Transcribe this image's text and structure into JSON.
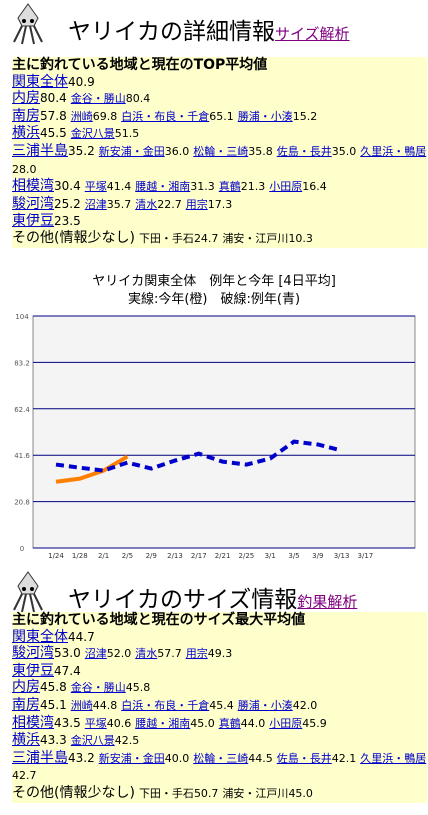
{
  "section1": {
    "title": "ヤリイカの詳細情報",
    "link": "サイズ解析",
    "heading": "主に釣れている地域と現在のTOP平均値",
    "rows": [
      {
        "region": "関東全体",
        "value": "40.9",
        "areas": []
      },
      {
        "region": "内房",
        "value": "80.4",
        "areas": [
          {
            "name": "金谷・勝山",
            "value": "80.4"
          }
        ]
      },
      {
        "region": "南房",
        "value": "57.8",
        "areas": [
          {
            "name": "洲崎",
            "value": "69.8"
          },
          {
            "name": "白浜・布良・千倉",
            "value": "65.1"
          },
          {
            "name": "勝浦・小湊",
            "value": "15.2"
          }
        ]
      },
      {
        "region": "横浜",
        "value": "45.5",
        "areas": [
          {
            "name": "金沢八景",
            "value": "51.5"
          }
        ]
      },
      {
        "region": "三浦半島",
        "value": "35.2",
        "areas": [
          {
            "name": "新安浦・金田",
            "value": "36.0"
          },
          {
            "name": "松輪・三崎",
            "value": "35.8"
          },
          {
            "name": "佐島・長井",
            "value": "35.0"
          },
          {
            "name": "久里浜・鴨居",
            "value": "28.0"
          }
        ]
      },
      {
        "region": "相模湾",
        "value": "30.4",
        "areas": [
          {
            "name": "平塚",
            "value": "41.4"
          },
          {
            "name": "腰越・湘南",
            "value": "31.3"
          },
          {
            "name": "真鶴",
            "value": "21.3"
          },
          {
            "name": "小田原",
            "value": "16.4"
          }
        ]
      },
      {
        "region": "駿河湾",
        "value": "25.2",
        "areas": [
          {
            "name": "沼津",
            "value": "35.7"
          },
          {
            "name": "清水",
            "value": "22.7"
          },
          {
            "name": "用宗",
            "value": "17.3"
          }
        ]
      },
      {
        "region": "東伊豆",
        "value": "23.5",
        "areas": []
      },
      {
        "region": "その他(情報少なし)",
        "linked": false,
        "areas": [
          {
            "name": "下田・手石",
            "value": "24.7",
            "linked": false
          },
          {
            "name": "浦安・江戸川",
            "value": "10.3",
            "linked": false
          }
        ]
      }
    ]
  },
  "chart_data": {
    "type": "line",
    "title": "ヤリイカ関東全体　例年と今年 [4日平均]",
    "subtitle": "実線:今年(橙)　破線:例年(青)",
    "categories": [
      "1/24",
      "1/28",
      "2/1",
      "2/5",
      "2/9",
      "2/13",
      "2/17",
      "2/21",
      "2/25",
      "3/1",
      "3/5",
      "3/9",
      "3/13",
      "3/17"
    ],
    "series": [
      {
        "color": "#ff8000",
        "style": "solid",
        "values": [
          29.7,
          31.1,
          34.7,
          41,
          null,
          null,
          null,
          null,
          null,
          null,
          null,
          null,
          null,
          null
        ]
      },
      {
        "color": "#0000cc",
        "style": "dashed",
        "values": [
          37.4,
          36,
          34.7,
          38.3,
          35.6,
          39.2,
          42.3,
          38.7,
          37.4,
          40.1,
          47.7,
          46.4,
          43.7,
          null
        ]
      }
    ],
    "ylim": [
      0,
      104
    ],
    "yticks": [
      0,
      20.8,
      41.6,
      62.4,
      83.2,
      104
    ],
    "grid": true
  },
  "section2": {
    "title": "ヤリイカのサイズ情報",
    "link": "釣果解析",
    "heading": "主に釣れている地域と現在のサイズ最大平均値",
    "rows": [
      {
        "region": "関東全体",
        "value": "44.7",
        "areas": []
      },
      {
        "region": "駿河湾",
        "value": "53.0",
        "areas": [
          {
            "name": "沼津",
            "value": "52.0"
          },
          {
            "name": "清水",
            "value": "57.7"
          },
          {
            "name": "用宗",
            "value": "49.3"
          }
        ]
      },
      {
        "region": "東伊豆",
        "value": "47.4",
        "areas": []
      },
      {
        "region": "内房",
        "value": "45.8",
        "areas": [
          {
            "name": "金谷・勝山",
            "value": "45.8"
          }
        ]
      },
      {
        "region": "南房",
        "value": "45.1",
        "areas": [
          {
            "name": "洲崎",
            "value": "44.8"
          },
          {
            "name": "白浜・布良・千倉",
            "value": "45.4"
          },
          {
            "name": "勝浦・小湊",
            "value": "42.0"
          }
        ]
      },
      {
        "region": "相模湾",
        "value": "43.5",
        "areas": [
          {
            "name": "平塚",
            "value": "40.6"
          },
          {
            "name": "腰越・湘南",
            "value": "45.0"
          },
          {
            "name": "真鶴",
            "value": "44.0"
          },
          {
            "name": "小田原",
            "value": "45.9"
          }
        ]
      },
      {
        "region": "横浜",
        "value": "43.3",
        "areas": [
          {
            "name": "金沢八景",
            "value": "42.5"
          }
        ]
      },
      {
        "region": "三浦半島",
        "value": "43.2",
        "areas": [
          {
            "name": "新安浦・金田",
            "value": "40.0"
          },
          {
            "name": "松輪・三崎",
            "value": "44.5"
          },
          {
            "name": "佐島・長井",
            "value": "42.1"
          },
          {
            "name": "久里浜・鴨居",
            "value": "42.7"
          }
        ]
      },
      {
        "region": "その他(情報少なし)",
        "linked": false,
        "areas": [
          {
            "name": "下田・手石",
            "value": "50.7",
            "linked": false
          },
          {
            "name": "浦安・江戸川",
            "value": "45.0",
            "linked": false
          }
        ]
      }
    ]
  }
}
